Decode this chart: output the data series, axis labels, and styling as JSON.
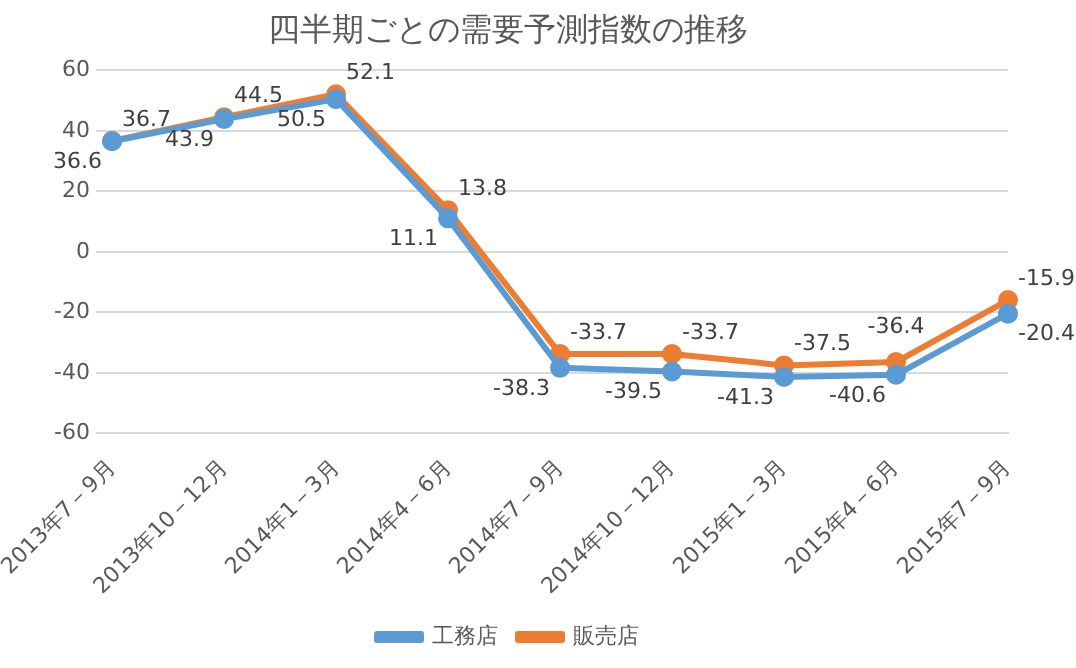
{
  "chart_data": {
    "type": "line",
    "title": "四半期ごとの需要予測指数の推移",
    "categories": [
      "2013年7－9月",
      "2013年10－12月",
      "2014年1－3月",
      "2014年4－6月",
      "2014年7－9月",
      "2014年10－12月",
      "2015年1－3月",
      "2015年4－6月",
      "2015年7－9月"
    ],
    "series": [
      {
        "name": "工務店",
        "color": "#5b9bd5",
        "values": [
          36.6,
          43.9,
          50.5,
          11.1,
          -38.3,
          -39.5,
          -41.3,
          -40.6,
          -20.4
        ]
      },
      {
        "name": "販売店",
        "color": "#ed7d31",
        "values": [
          36.7,
          44.5,
          52.1,
          13.8,
          -33.7,
          -33.7,
          -37.5,
          -36.4,
          -15.9
        ]
      }
    ],
    "ylim": [
      -60,
      60
    ],
    "yticks": [
      -60,
      -40,
      -20,
      0,
      20,
      40,
      60
    ],
    "grid": "y",
    "legend": "bottom",
    "marker": "circle",
    "line_style": "solid",
    "data_labels": true
  }
}
